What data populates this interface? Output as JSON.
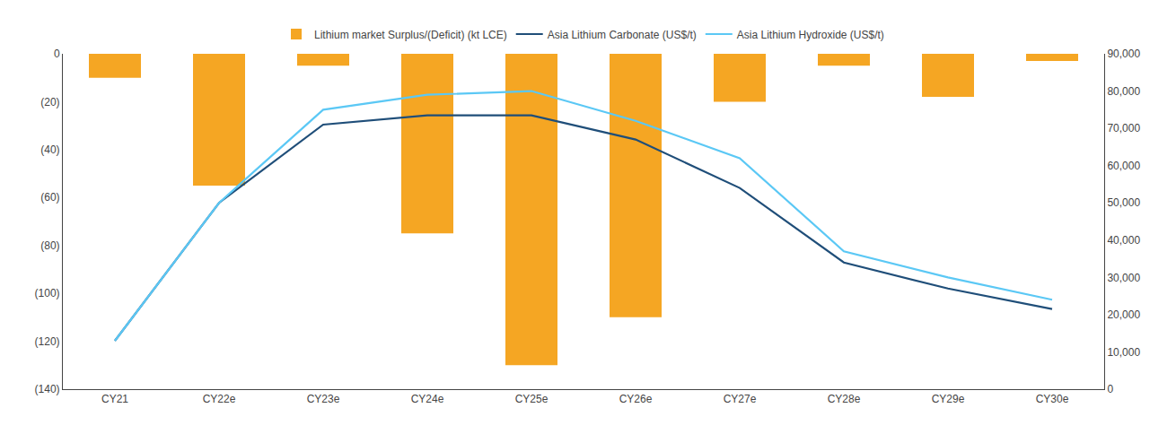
{
  "chart_data": {
    "type": "bar",
    "categories": [
      "CY21",
      "CY22e",
      "CY23e",
      "CY24e",
      "CY25e",
      "CY26e",
      "CY27e",
      "CY28e",
      "CY29e",
      "CY30e"
    ],
    "series": [
      {
        "name": "Lithium market Surplus/(Deficit) (kt LCE)",
        "type": "bar",
        "color": "#F5A623",
        "values": [
          -10,
          -55,
          -5,
          -75,
          -130,
          -110,
          -20,
          -5,
          -18,
          -3
        ]
      },
      {
        "name": "Asia Lithium Carbonate (US$/t)",
        "type": "line",
        "axis": "y2",
        "color": "#1F4E79",
        "values": [
          13000,
          50000,
          71000,
          73500,
          73500,
          67000,
          54000,
          34000,
          27000,
          21500
        ]
      },
      {
        "name": "Asia Lithium Hydroxide (US$/t)",
        "type": "line",
        "axis": "y2",
        "color": "#5BC8F5",
        "values": [
          13000,
          50000,
          75000,
          79000,
          80000,
          72000,
          62000,
          37000,
          30000,
          24000
        ]
      }
    ],
    "ylim": [
      -140,
      0
    ],
    "yticks": [
      {
        "value": -140,
        "label": "(140)"
      },
      {
        "value": -120,
        "label": "(120)"
      },
      {
        "value": -100,
        "label": "(100)"
      },
      {
        "value": -80,
        "label": "(80)"
      },
      {
        "value": -60,
        "label": "(60)"
      },
      {
        "value": -40,
        "label": "(40)"
      },
      {
        "value": -20,
        "label": "(20)"
      },
      0
    ],
    "y2lim": [
      0,
      90000
    ],
    "y2ticks": [
      0,
      {
        "value": 10000,
        "label": "10,000"
      },
      {
        "value": 20000,
        "label": "20,000"
      },
      {
        "value": 30000,
        "label": "30,000"
      },
      {
        "value": 40000,
        "label": "40,000"
      },
      {
        "value": 50000,
        "label": "50,000"
      },
      {
        "value": 60000,
        "label": "60,000"
      },
      {
        "value": 70000,
        "label": "70,000"
      },
      {
        "value": 80000,
        "label": "80,000"
      },
      {
        "value": 90000,
        "label": "90,000"
      }
    ],
    "grid": false,
    "legend": "top"
  }
}
